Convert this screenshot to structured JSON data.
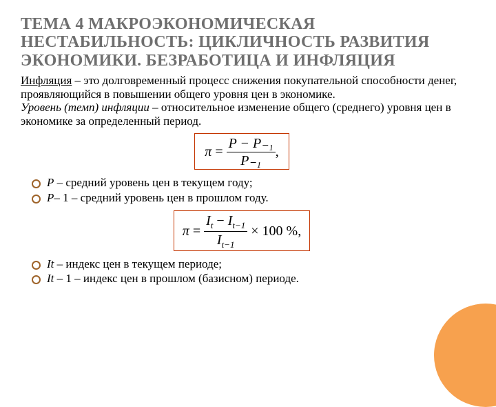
{
  "title": "ТЕМА 4 МАКРОЭКОНОМИЧЕСКАЯ НЕСТАБИЛЬНОСТЬ: ЦИКЛИЧНОСТЬ РАЗВИТИЯ ЭКОНОМИКИ. БЕЗРАБОТИЦА И ИНФЛЯЦИЯ",
  "para1_term": "Инфляция",
  "para1_text": " – это долговременный процесс снижения покупательной способности денег, проявляющийся в повышении общего уровня цен в экономике.",
  "para2_term": "Уровень (темп) инфляции",
  "para2_text": " – относительное изменение общего (среднего) уровня цен в экономике за определенный период.",
  "formula1": {
    "lhs": "π",
    "num": "P − P₋₁",
    "den": "P₋₁",
    "tail": ","
  },
  "bullets1": [
    "P – средний уровень цен в текущем году;",
    "P– 1 – средний уровень цен в прошлом году."
  ],
  "formula2": {
    "lhs": "π",
    "num_a": "I",
    "num_a_sub": "t",
    "num_b": "I",
    "num_b_sub": "t−1",
    "den": "I",
    "den_sub": "t−1",
    "tail": " × 100 %,"
  },
  "bullets2": [
    "It – индекс цен в текущем периоде;",
    "It – 1 – индекс цен в прошлом (базисном) периоде."
  ],
  "colors": {
    "title": "#6f6f6f",
    "formula_border": "#c43500",
    "bullet_ring": "#9e6329",
    "circle_deco": "#f7a14e",
    "text": "#000000",
    "bg": "#ffffff"
  }
}
